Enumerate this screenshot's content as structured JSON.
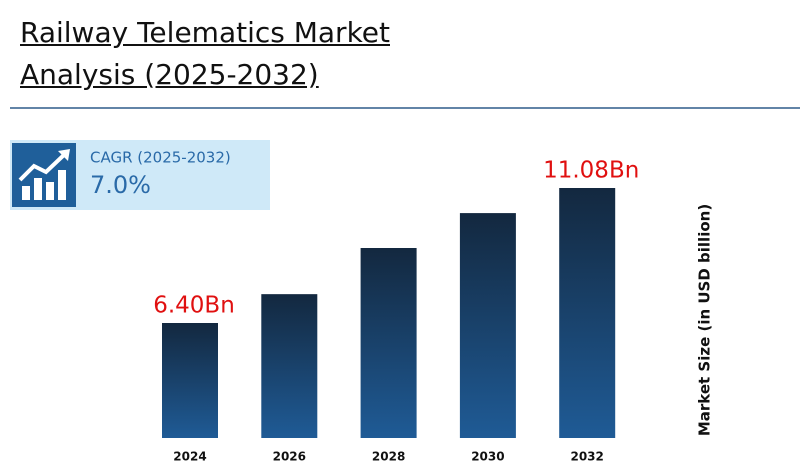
{
  "chart_data": {
    "type": "bar",
    "title": "Railway Telematics Market Analysis (2025-2032)",
    "cagr_label": "CAGR (2025-2032)",
    "cagr_value": "7.0%",
    "y_label": "Market Size (in USD billion)",
    "categories": [
      "2024",
      "2026",
      "2028",
      "2030",
      "2032"
    ],
    "values": [
      6.4,
      7.4,
      9.0,
      10.21,
      11.08
    ],
    "value_labels": [
      "6.40Bn",
      null,
      null,
      null,
      "11.08Bn"
    ],
    "color": "#1f5b96"
  }
}
